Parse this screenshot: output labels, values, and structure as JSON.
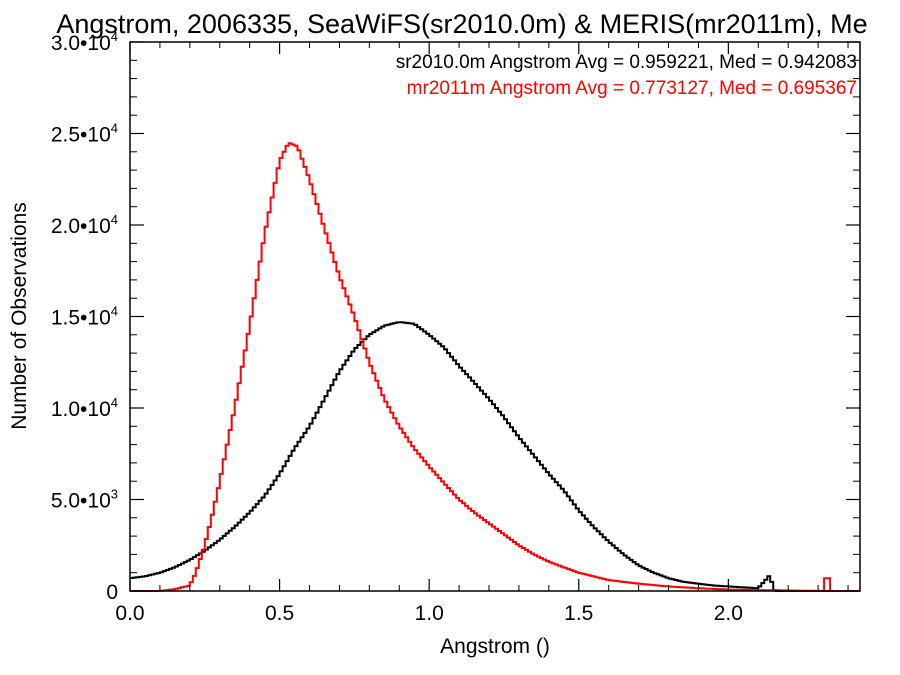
{
  "chart_data": {
    "type": "line",
    "title": "Angstrom, 2006335, SeaWiFS(sr2010.0m) & MERIS(mr2011m), Me",
    "xlabel": "Angstrom ()",
    "ylabel": "Number of Observations",
    "xlim": [
      0,
      2.44
    ],
    "ylim": [
      0,
      30000
    ],
    "x_ticks": [
      {
        "value": 0.0,
        "label": "0.0"
      },
      {
        "value": 0.5,
        "label": "0.5"
      },
      {
        "value": 1.0,
        "label": "1.0"
      },
      {
        "value": 1.5,
        "label": "1.5"
      },
      {
        "value": 2.0,
        "label": "2.0"
      }
    ],
    "y_ticks": [
      {
        "value": 0,
        "mant": "0",
        "exp": ""
      },
      {
        "value": 5000,
        "mant": "5.0•10",
        "exp": "3"
      },
      {
        "value": 10000,
        "mant": "1.0•10",
        "exp": "4"
      },
      {
        "value": 15000,
        "mant": "1.5•10",
        "exp": "4"
      },
      {
        "value": 20000,
        "mant": "2.0•10",
        "exp": "4"
      },
      {
        "value": 25000,
        "mant": "2.5•10",
        "exp": "4"
      },
      {
        "value": 30000,
        "mant": "3.0•10",
        "exp": "4"
      }
    ],
    "annotations": [
      {
        "text": "sr2010.0m Angstrom Avg = 0.959221, Med = 0.942083",
        "color": "#000000"
      },
      {
        "text": "mr2011m Angstrom Avg = 0.773127, Med = 0.695367",
        "color": "#ff0000"
      }
    ],
    "series": [
      {
        "color": "#000000",
        "x": [
          0.0,
          0.05,
          0.1,
          0.15,
          0.2,
          0.25,
          0.3,
          0.35,
          0.4,
          0.45,
          0.5,
          0.55,
          0.6,
          0.65,
          0.7,
          0.75,
          0.8,
          0.85,
          0.9,
          0.95,
          1.0,
          1.05,
          1.1,
          1.15,
          1.2,
          1.25,
          1.3,
          1.35,
          1.4,
          1.45,
          1.5,
          1.55,
          1.6,
          1.65,
          1.7,
          1.75,
          1.8,
          1.85,
          1.9,
          1.95,
          2.0,
          2.05,
          2.1,
          2.14,
          2.15,
          2.16,
          2.2,
          2.3,
          2.44
        ],
        "values": [
          700,
          800,
          1000,
          1300,
          1700,
          2200,
          2800,
          3500,
          4300,
          5200,
          6400,
          7800,
          9000,
          10500,
          12000,
          13200,
          14000,
          14500,
          14700,
          14600,
          14000,
          13300,
          12300,
          11400,
          10500,
          9500,
          8400,
          7400,
          6400,
          5500,
          4400,
          3500,
          2700,
          2000,
          1400,
          1000,
          700,
          500,
          400,
          300,
          250,
          200,
          150,
          900,
          100,
          0,
          0,
          0,
          0
        ]
      },
      {
        "color": "#ff0000",
        "x": [
          0.0,
          0.1,
          0.15,
          0.2,
          0.22,
          0.25,
          0.28,
          0.3,
          0.35,
          0.4,
          0.45,
          0.5,
          0.53,
          0.56,
          0.6,
          0.65,
          0.7,
          0.75,
          0.8,
          0.85,
          0.9,
          0.95,
          1.0,
          1.05,
          1.1,
          1.15,
          1.2,
          1.25,
          1.3,
          1.35,
          1.4,
          1.5,
          1.6,
          1.7,
          1.8,
          1.9,
          2.0,
          2.1,
          2.2,
          2.32,
          2.33,
          2.34,
          2.44
        ],
        "values": [
          0,
          0,
          100,
          300,
          1000,
          2500,
          4500,
          6000,
          10000,
          14500,
          19500,
          23500,
          24500,
          24300,
          22500,
          19800,
          17200,
          15000,
          12500,
          10500,
          9000,
          7800,
          6800,
          5900,
          5000,
          4300,
          3700,
          3100,
          2500,
          2000,
          1600,
          1000,
          600,
          400,
          250,
          150,
          80,
          50,
          30,
          0,
          1400,
          0,
          0
        ]
      }
    ]
  }
}
